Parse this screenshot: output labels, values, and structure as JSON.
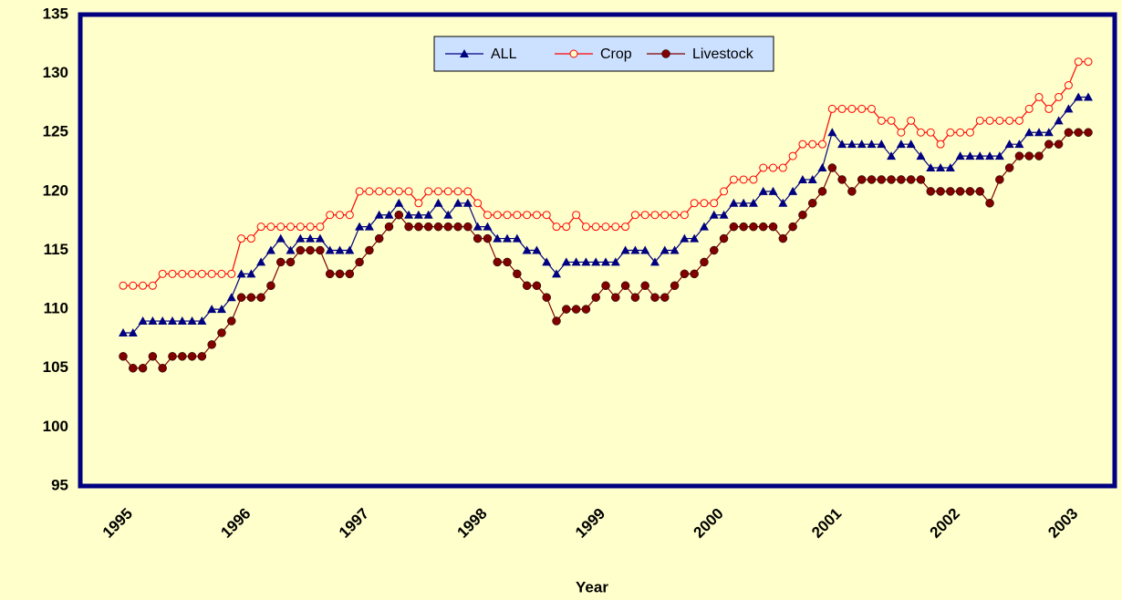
{
  "chart_data": {
    "type": "line",
    "x_label": "Year",
    "categories": [
      "1995",
      null,
      null,
      null,
      null,
      null,
      null,
      null,
      null,
      null,
      null,
      null,
      "1996",
      null,
      null,
      null,
      null,
      null,
      null,
      null,
      null,
      null,
      null,
      null,
      "1997",
      null,
      null,
      null,
      null,
      null,
      null,
      null,
      null,
      null,
      null,
      null,
      "1998",
      null,
      null,
      null,
      null,
      null,
      null,
      null,
      null,
      null,
      null,
      null,
      "1999",
      null,
      null,
      null,
      null,
      null,
      null,
      null,
      null,
      null,
      null,
      null,
      "2000",
      null,
      null,
      null,
      null,
      null,
      null,
      null,
      null,
      null,
      null,
      null,
      "2001",
      null,
      null,
      null,
      null,
      null,
      null,
      null,
      null,
      null,
      null,
      null,
      "2002",
      null,
      null,
      null,
      null,
      null,
      null,
      null,
      null,
      null,
      null,
      null,
      "2003",
      null,
      null
    ],
    "series": [
      {
        "name": "ALL",
        "color": "#000080",
        "marker": "triangle",
        "values": [
          108,
          108,
          109,
          109,
          109,
          109,
          109,
          109,
          109,
          110,
          110,
          111,
          113,
          113,
          114,
          115,
          116,
          115,
          116,
          116,
          116,
          115,
          115,
          115,
          117,
          117,
          118,
          118,
          119,
          118,
          118,
          118,
          119,
          118,
          119,
          119,
          117,
          117,
          116,
          116,
          116,
          115,
          115,
          114,
          113,
          114,
          114,
          114,
          114,
          114,
          114,
          115,
          115,
          115,
          114,
          115,
          115,
          116,
          116,
          117,
          118,
          118,
          119,
          119,
          119,
          120,
          120,
          119,
          120,
          121,
          121,
          122,
          125,
          124,
          124,
          124,
          124,
          124,
          123,
          124,
          124,
          123,
          122,
          122,
          122,
          123,
          123,
          123,
          123,
          123,
          124,
          124,
          125,
          125,
          125,
          126,
          127,
          128,
          128
        ]
      },
      {
        "name": "Crop",
        "color": "#ff0000",
        "marker": "open-circle",
        "values": [
          112,
          112,
          112,
          112,
          113,
          113,
          113,
          113,
          113,
          113,
          113,
          113,
          116,
          116,
          117,
          117,
          117,
          117,
          117,
          117,
          117,
          118,
          118,
          118,
          120,
          120,
          120,
          120,
          120,
          120,
          119,
          120,
          120,
          120,
          120,
          120,
          119,
          118,
          118,
          118,
          118,
          118,
          118,
          118,
          117,
          117,
          118,
          117,
          117,
          117,
          117,
          117,
          118,
          118,
          118,
          118,
          118,
          118,
          119,
          119,
          119,
          120,
          121,
          121,
          121,
          122,
          122,
          122,
          123,
          124,
          124,
          124,
          127,
          127,
          127,
          127,
          127,
          126,
          126,
          125,
          126,
          125,
          125,
          124,
          125,
          125,
          125,
          126,
          126,
          126,
          126,
          126,
          127,
          128,
          127,
          128,
          129,
          131,
          131
        ]
      },
      {
        "name": "Livestock",
        "color": "#800000",
        "marker": "circle",
        "values": [
          106,
          105,
          105,
          106,
          105,
          106,
          106,
          106,
          106,
          107,
          108,
          109,
          111,
          111,
          111,
          112,
          114,
          114,
          115,
          115,
          115,
          113,
          113,
          113,
          114,
          115,
          116,
          117,
          118,
          117,
          117,
          117,
          117,
          117,
          117,
          117,
          116,
          116,
          114,
          114,
          113,
          112,
          112,
          111,
          109,
          110,
          110,
          110,
          111,
          112,
          111,
          112,
          111,
          112,
          111,
          111,
          112,
          113,
          113,
          114,
          115,
          116,
          117,
          117,
          117,
          117,
          117,
          116,
          117,
          118,
          119,
          120,
          122,
          121,
          120,
          121,
          121,
          121,
          121,
          121,
          121,
          121,
          120,
          120,
          120,
          120,
          120,
          120,
          119,
          121,
          122,
          123,
          123,
          123,
          124,
          124,
          125,
          125,
          125
        ]
      }
    ],
    "ylim": [
      95,
      135
    ],
    "yticks": [
      95,
      100,
      105,
      110,
      115,
      120,
      125,
      130,
      135
    ],
    "grid": true,
    "legend": "top"
  }
}
